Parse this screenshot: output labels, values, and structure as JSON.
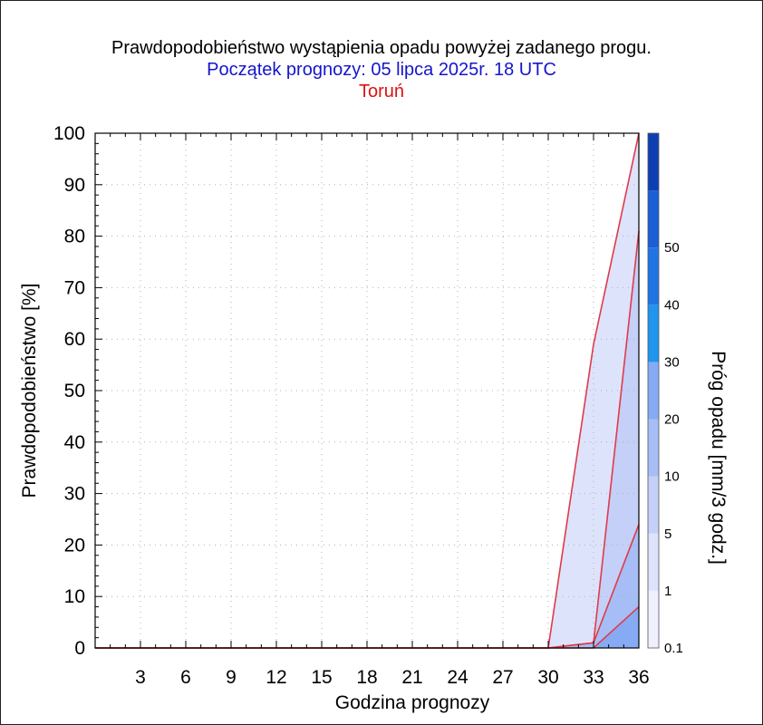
{
  "title": "Prawdopodobieństwo wystąpienia opadu powyżej zadanego progu.",
  "subtitle": "Początek prognozy: 05 lipca 2025r. 18 UTC",
  "location": "Toruń",
  "colors": {
    "title": "#000000",
    "subtitle": "#1515cc",
    "location": "#dd1111",
    "boundary_line": "#e03a4a",
    "grid": "#b0b0b0"
  },
  "chart_data": {
    "type": "area",
    "xlabel": "Godzina prognozy",
    "ylabel": "Prawdopodobieństwo [%]",
    "colorbar_label": "Próg opadu [mm/3 godz.]",
    "xlim": [
      0,
      36
    ],
    "ylim": [
      0,
      100
    ],
    "x_ticks": [
      3,
      6,
      9,
      12,
      15,
      18,
      21,
      24,
      27,
      30,
      33,
      36
    ],
    "y_ticks": [
      0,
      10,
      20,
      30,
      40,
      50,
      60,
      70,
      80,
      90,
      100
    ],
    "grid": true,
    "x": [
      0,
      3,
      6,
      9,
      12,
      15,
      18,
      21,
      24,
      27,
      30,
      33,
      36
    ],
    "series": [
      {
        "threshold": "0.1",
        "color": "#dde3fb",
        "values": [
          0,
          0,
          0,
          0,
          0,
          0,
          0,
          0,
          0,
          0,
          0,
          59,
          100
        ]
      },
      {
        "threshold": "1",
        "color": "#c4d0f7",
        "values": [
          0,
          0,
          0,
          0,
          0,
          0,
          0,
          0,
          0,
          0,
          0,
          1,
          81
        ]
      },
      {
        "threshold": "5",
        "color": "#a6bdf6",
        "values": [
          0,
          0,
          0,
          0,
          0,
          0,
          0,
          0,
          0,
          0,
          0,
          1,
          24
        ]
      },
      {
        "threshold": "10",
        "color": "#86abf4",
        "values": [
          0,
          0,
          0,
          0,
          0,
          0,
          0,
          0,
          0,
          0,
          0,
          0,
          8
        ]
      }
    ],
    "colorbar": {
      "labels": [
        "0.1",
        "1",
        "5",
        "10",
        "20",
        "30",
        "40",
        "50"
      ],
      "colors": [
        "#eef1fd",
        "#dde3fb",
        "#c4d0f7",
        "#a6bdf6",
        "#86abf4",
        "#1f95f0",
        "#2074e4",
        "#1a5fd6",
        "#0d3fb3"
      ]
    }
  }
}
